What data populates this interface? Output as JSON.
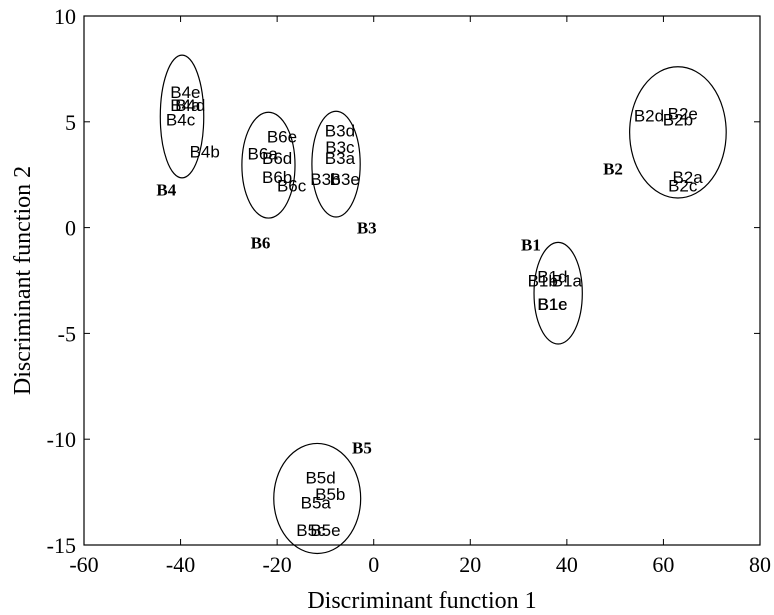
{
  "chart_data": {
    "type": "scatter",
    "title": "",
    "xlabel": "Discriminant function 1",
    "ylabel": "Discriminant function 2",
    "xlim": [
      -60,
      80
    ],
    "ylim": [
      -15,
      10
    ],
    "xticks": [
      -60,
      -40,
      -20,
      0,
      20,
      40,
      60,
      80
    ],
    "yticks": [
      -15,
      -10,
      -5,
      0,
      5,
      10
    ],
    "grid": false,
    "points": [
      {
        "label": "B4e",
        "x": -39,
        "y": 6.4
      },
      {
        "label": "B4a",
        "x": -39,
        "y": 5.8
      },
      {
        "label": "B4d",
        "x": -38,
        "y": 5.8
      },
      {
        "label": "B4c",
        "x": -40,
        "y": 5.1
      },
      {
        "label": "B4b",
        "x": -35,
        "y": 3.6
      },
      {
        "label": "B6e",
        "x": -19,
        "y": 4.3
      },
      {
        "label": "B6a",
        "x": -23,
        "y": 3.5
      },
      {
        "label": "B6d",
        "x": -20,
        "y": 3.3
      },
      {
        "label": "B6b",
        "x": -20,
        "y": 2.4
      },
      {
        "label": "B6c",
        "x": -17,
        "y": 2.0
      },
      {
        "label": "B3d",
        "x": -7,
        "y": 4.6
      },
      {
        "label": "B3c",
        "x": -7,
        "y": 3.8
      },
      {
        "label": "B3a",
        "x": -7,
        "y": 3.3
      },
      {
        "label": "B3b",
        "x": -10,
        "y": 2.3
      },
      {
        "label": "B3e",
        "x": -6,
        "y": 2.3
      },
      {
        "label": "B2d",
        "x": 57,
        "y": 5.3
      },
      {
        "label": "B2e",
        "x": 64,
        "y": 5.4
      },
      {
        "label": "B2b",
        "x": 63,
        "y": 5.1
      },
      {
        "label": "B2a",
        "x": 65,
        "y": 2.4
      },
      {
        "label": "B2c",
        "x": 64,
        "y": 2.0
      },
      {
        "label": "B1d",
        "x": 37,
        "y": -2.3
      },
      {
        "label": "B1b",
        "x": 35,
        "y": -2.5
      },
      {
        "label": "B1a",
        "x": 40,
        "y": -2.5
      },
      {
        "label": "B1e",
        "x": 37,
        "y": -3.6
      },
      {
        "label": "B1c",
        "x": 37,
        "y": -3.6
      },
      {
        "label": "B5d",
        "x": -11,
        "y": -11.8
      },
      {
        "label": "B5b",
        "x": -9,
        "y": -12.6
      },
      {
        "label": "B5a",
        "x": -12,
        "y": -13
      },
      {
        "label": "B5c",
        "x": -13,
        "y": -14.3
      },
      {
        "label": "B5e",
        "x": -10,
        "y": -14.3
      }
    ],
    "clusters": [
      {
        "name": "B4",
        "cx": -39.7,
        "cy": 5.25,
        "rx": 4.5,
        "ry": 2.9,
        "label_x": -45,
        "label_y": 1.8
      },
      {
        "name": "B6",
        "cx": -21.8,
        "cy": 2.95,
        "rx": 5.5,
        "ry": 2.5,
        "label_x": -25.5,
        "label_y": -0.7
      },
      {
        "name": "B3",
        "cx": -7.8,
        "cy": 3.0,
        "rx": 5.0,
        "ry": 2.5,
        "label_x": -3.5,
        "label_y": 0.0
      },
      {
        "name": "B2",
        "cx": 63,
        "cy": 4.5,
        "rx": 10.0,
        "ry": 3.1,
        "label_x": 47.5,
        "label_y": 2.8
      },
      {
        "name": "B1",
        "cx": 38.2,
        "cy": -3.1,
        "rx": 5.0,
        "ry": 2.4,
        "label_x": 30.5,
        "label_y": -0.8
      },
      {
        "name": "B5",
        "cx": -11.7,
        "cy": -12.8,
        "rx": 9.0,
        "ry": 2.6,
        "label_x": -4.5,
        "label_y": -10.4
      }
    ]
  }
}
